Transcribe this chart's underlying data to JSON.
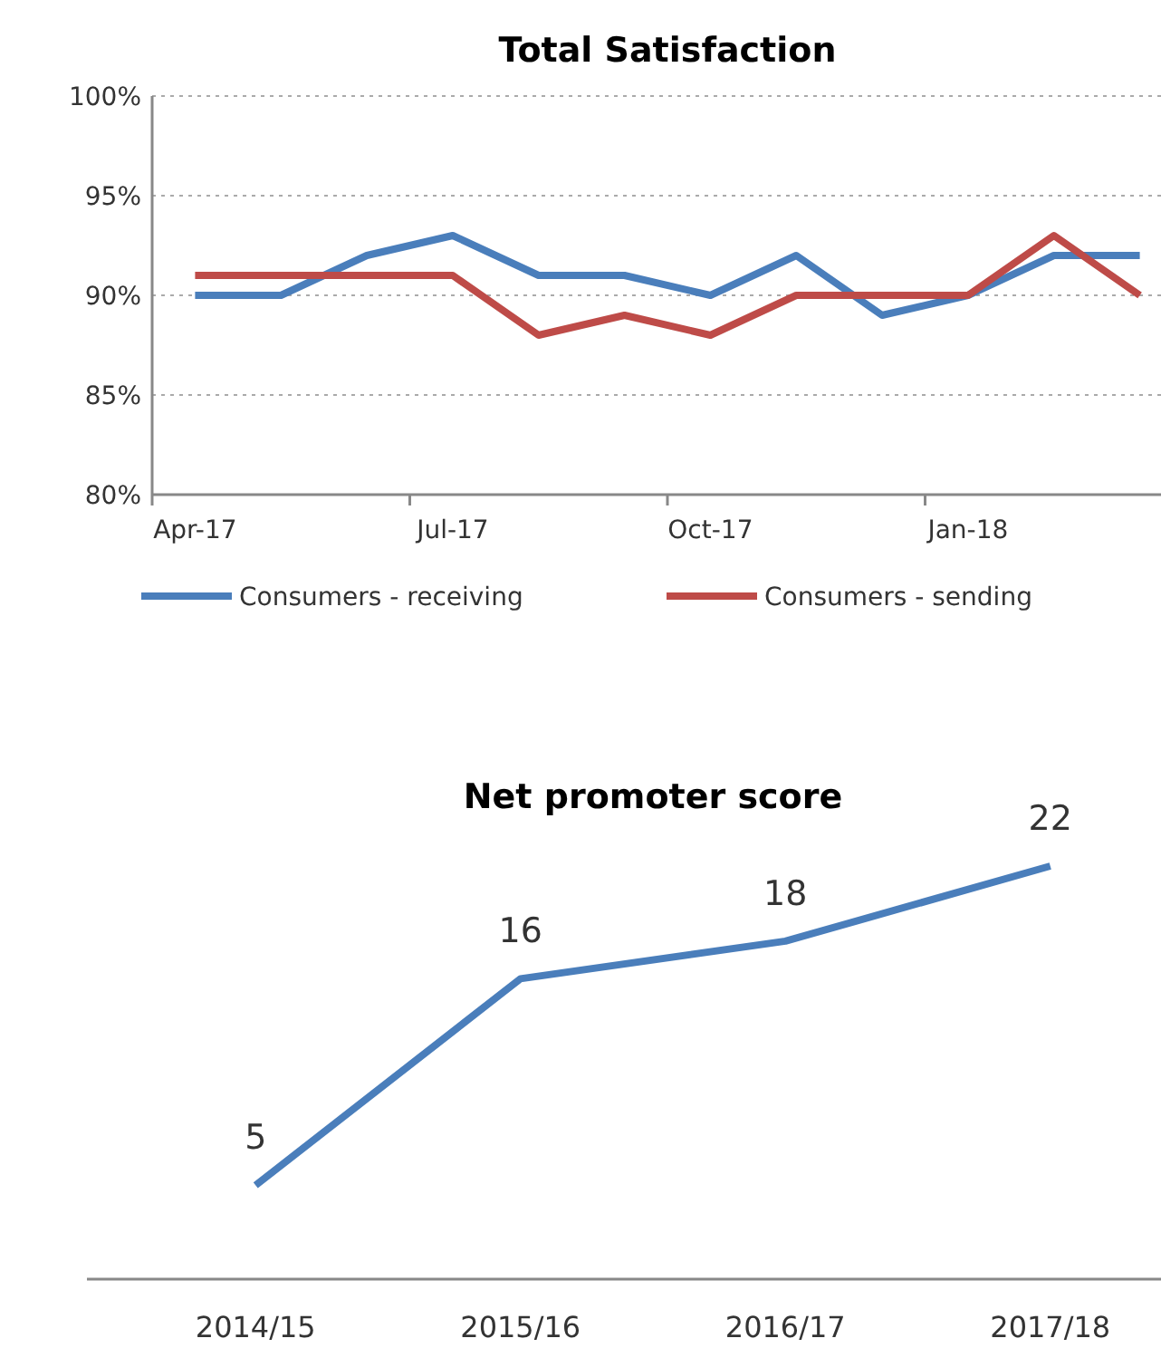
{
  "chart_data": [
    {
      "type": "line",
      "title": "Total Satisfaction",
      "categories": [
        "Apr-17",
        null,
        null,
        "Jul-17",
        null,
        null,
        "Oct-17",
        null,
        null,
        "Jan-18",
        null,
        null
      ],
      "series": [
        {
          "name": "Consumers - receiving",
          "color": "#4a7ebb",
          "values": [
            90,
            90,
            92,
            93,
            91,
            91,
            90,
            92,
            89,
            90,
            92,
            92
          ]
        },
        {
          "name": "Consumers - sending",
          "color": "#be4b48",
          "values": [
            91,
            91,
            91,
            91,
            88,
            89,
            88,
            90,
            90,
            90,
            93,
            90
          ]
        }
      ],
      "ylim": [
        80,
        100
      ],
      "yticks": [
        {
          "value": 80,
          "label": "80%"
        },
        {
          "value": 85,
          "label": "85%"
        },
        {
          "value": 90,
          "label": "90%"
        },
        {
          "value": 95,
          "label": "95%"
        },
        {
          "value": 100,
          "label": "100%"
        }
      ],
      "grid": "y",
      "legend": "bottom",
      "marker": "none",
      "line_style": "solid"
    },
    {
      "type": "line",
      "title": "Net promoter score",
      "categories": [
        "2014/15",
        "2015/16",
        "2016/17",
        "2017/18"
      ],
      "series": [
        {
          "color": "#4a7ebb",
          "values": [
            5,
            16,
            18,
            22
          ]
        }
      ],
      "data_labels": true,
      "tick_labels": "x",
      "legend": false,
      "marker": "none",
      "line_style": "solid"
    }
  ]
}
